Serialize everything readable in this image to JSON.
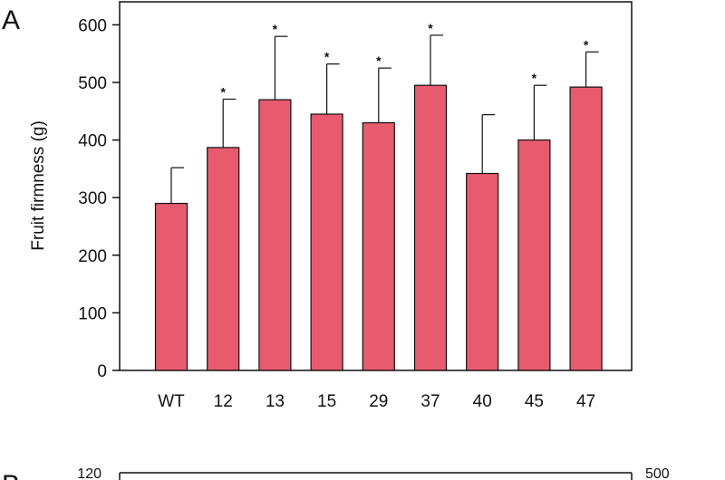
{
  "panels": {
    "a_label": "A",
    "b_label": "B"
  },
  "chart_data": [
    {
      "type": "bar",
      "panel": "A",
      "categories": [
        "WT",
        "12",
        "13",
        "15",
        "29",
        "37",
        "40",
        "45",
        "47"
      ],
      "values": [
        290,
        387,
        470,
        445,
        430,
        495,
        342,
        400,
        492
      ],
      "errors": [
        62,
        84,
        110,
        87,
        95,
        87,
        102,
        95,
        61
      ],
      "significant": [
        false,
        true,
        true,
        true,
        true,
        true,
        false,
        true,
        true
      ],
      "significance_marker": "*",
      "title": "",
      "xlabel": "",
      "ylabel": "Fruit firmness (g)",
      "ylim": [
        0,
        640
      ],
      "yticks": [
        0,
        100,
        200,
        300,
        400,
        500,
        600
      ],
      "bar_color": "#e85a6e",
      "grid": false
    },
    {
      "type": "bar",
      "panel": "B",
      "partial": true,
      "left_axis_top_tick": "120",
      "right_axis_top_tick": "500"
    }
  ]
}
